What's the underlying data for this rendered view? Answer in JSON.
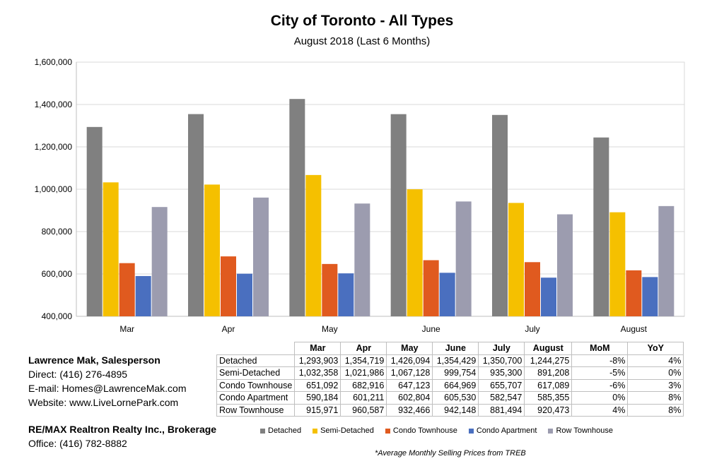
{
  "chart_data": {
    "type": "bar",
    "title": "City of Toronto - All Types",
    "subtitle": "August 2018 (Last 6 Months)",
    "categories": [
      "Mar",
      "Apr",
      "May",
      "June",
      "July",
      "August"
    ],
    "ylim": [
      400000,
      1600000
    ],
    "yticks": [
      "400,000",
      "600,000",
      "800,000",
      "1,000,000",
      "1,200,000",
      "1,400,000",
      "1,600,000"
    ],
    "ytick_values": [
      400000,
      600000,
      800000,
      1000000,
      1200000,
      1400000,
      1600000
    ],
    "grid": true,
    "legend_position": "bottom",
    "series": [
      {
        "name": "Detached",
        "color": "#808080",
        "values": [
          1293903,
          1354719,
          1426094,
          1354429,
          1350700,
          1244275
        ]
      },
      {
        "name": "Semi-Detached",
        "color": "#f5c000",
        "values": [
          1032358,
          1021986,
          1067128,
          999754,
          935300,
          891208
        ]
      },
      {
        "name": "Condo Townhouse",
        "color": "#e05a1f",
        "values": [
          651092,
          682916,
          647123,
          664969,
          655707,
          617089
        ]
      },
      {
        "name": "Condo Apartment",
        "color": "#4a6fbf",
        "values": [
          590184,
          601211,
          602804,
          605530,
          582547,
          585355
        ]
      },
      {
        "name": "Row Townhouse",
        "color": "#9c9caf",
        "values": [
          915971,
          960587,
          932466,
          942148,
          881494,
          920473
        ]
      }
    ]
  },
  "table": {
    "headers": [
      "Mar",
      "Apr",
      "May",
      "June",
      "July",
      "August",
      "MoM",
      "YoY"
    ],
    "rows": [
      {
        "name": "Detached",
        "cells": [
          "1,293,903",
          "1,354,719",
          "1,426,094",
          "1,354,429",
          "1,350,700",
          "1,244,275",
          "-8%",
          "4%"
        ]
      },
      {
        "name": "Semi-Detached",
        "cells": [
          "1,032,358",
          "1,021,986",
          "1,067,128",
          "999,754",
          "935,300",
          "891,208",
          "-5%",
          "0%"
        ]
      },
      {
        "name": "Condo Townhouse",
        "cells": [
          "651,092",
          "682,916",
          "647,123",
          "664,969",
          "655,707",
          "617,089",
          "-6%",
          "3%"
        ]
      },
      {
        "name": "Condo Apartment",
        "cells": [
          "590,184",
          "601,211",
          "602,804",
          "605,530",
          "582,547",
          "585,355",
          "0%",
          "8%"
        ]
      },
      {
        "name": "Row Townhouse",
        "cells": [
          "915,971",
          "960,587",
          "932,466",
          "942,148",
          "881,494",
          "920,473",
          "4%",
          "8%"
        ]
      }
    ]
  },
  "agent": {
    "name": "Lawrence Mak, Salesperson",
    "direct": "Direct:  (416) 276-4895",
    "email": "E-mail:  Homes@LawrenceMak.com",
    "website": "Website: www.LiveLornePark.com",
    "brokerage": "RE/MAX Realtron Realty Inc., Brokerage",
    "office": "Office: (416) 782-8882"
  },
  "footnote": "*Average Monthly Selling Prices  from TREB"
}
